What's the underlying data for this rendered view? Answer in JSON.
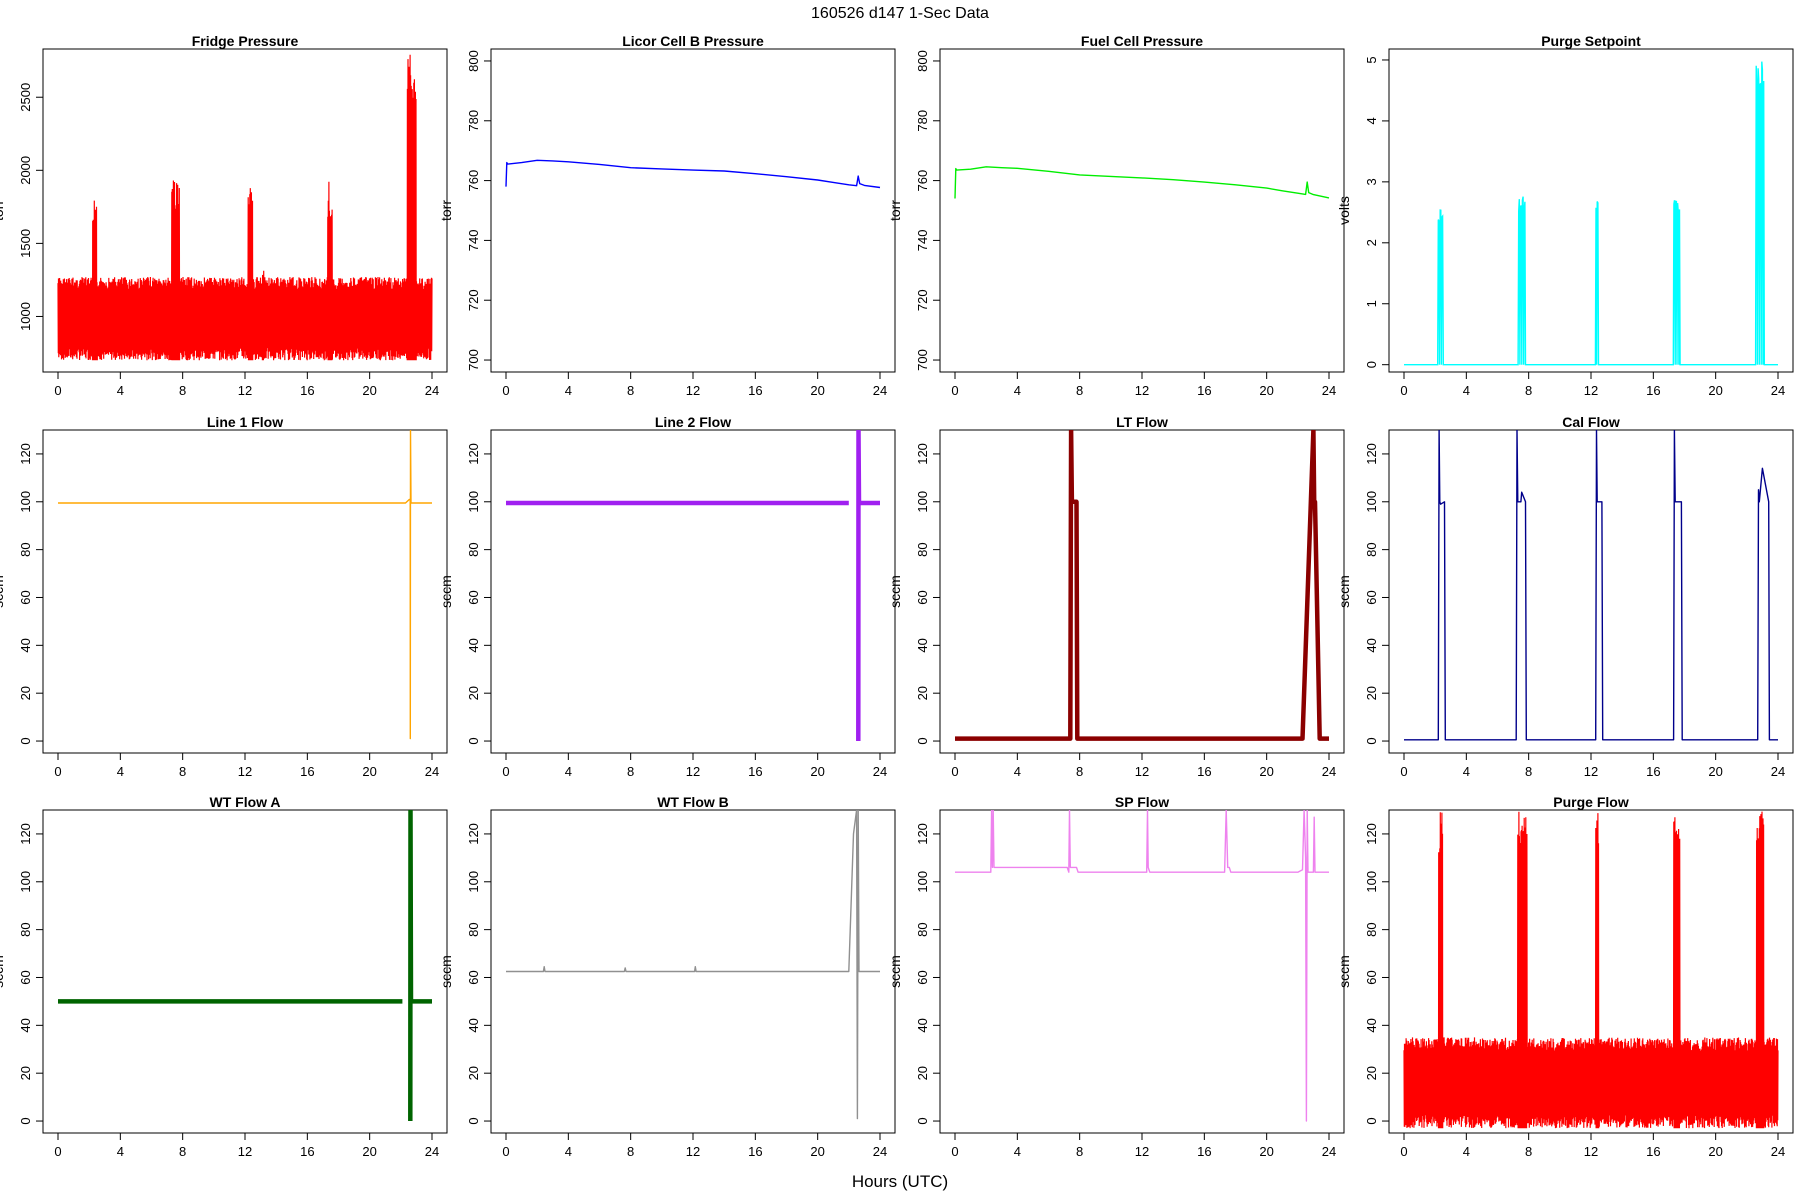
{
  "figure": {
    "title": "160526   d147   1-Sec Data",
    "xlabel": "Hours (UTC)"
  },
  "chart_data": [
    {
      "type": "line",
      "title": "Fridge Pressure",
      "ylabel": "torr",
      "color": "#ff0000",
      "xlim": [
        0,
        24
      ],
      "ylim": [
        620,
        2830
      ],
      "xticks": [
        0,
        4,
        8,
        12,
        16,
        20,
        24
      ],
      "yticks": [
        1000,
        1500,
        2000,
        2500
      ],
      "style": "noisy",
      "baseline": [
        700,
        1270
      ],
      "spikes": [
        {
          "x0": 2.2,
          "x1": 2.5,
          "y": 1900
        },
        {
          "x0": 7.3,
          "x1": 7.8,
          "y": 1940
        },
        {
          "x0": 12.2,
          "x1": 12.5,
          "y": 1900
        },
        {
          "x0": 13.1,
          "x1": 13.2,
          "y": 1450
        },
        {
          "x0": 17.3,
          "x1": 17.6,
          "y": 1930
        },
        {
          "x0": 22.4,
          "x1": 23.0,
          "y": 2800
        }
      ]
    },
    {
      "type": "line",
      "title": "Licor Cell B Pressure",
      "ylabel": "torr",
      "color": "#0000ff",
      "xlim": [
        0,
        24
      ],
      "ylim": [
        696,
        804
      ],
      "xticks": [
        0,
        4,
        8,
        12,
        16,
        20,
        24
      ],
      "yticks": [
        700,
        720,
        740,
        760,
        780,
        800
      ],
      "x": [
        0,
        0.05,
        0.1,
        1,
        2,
        3,
        4,
        6,
        8,
        10,
        12,
        14,
        16,
        18,
        20,
        21,
        22,
        22.5,
        22.6,
        22.7,
        23,
        24
      ],
      "y": [
        758,
        766,
        765.5,
        766,
        766.8,
        766.6,
        766.3,
        765.4,
        764.3,
        763.9,
        763.5,
        763.2,
        762.3,
        761.3,
        760.2,
        759.4,
        758.6,
        758.3,
        761.5,
        759,
        758.4,
        757.7
      ]
    },
    {
      "type": "line",
      "title": "Fuel Cell Pressure",
      "ylabel": "torr",
      "color": "#00ee00",
      "xlim": [
        0,
        24
      ],
      "ylim": [
        696,
        804
      ],
      "xticks": [
        0,
        4,
        8,
        12,
        16,
        20,
        24
      ],
      "yticks": [
        700,
        720,
        740,
        760,
        780,
        800
      ],
      "x": [
        0,
        0.05,
        0.1,
        1,
        2,
        3,
        4,
        6,
        8,
        10,
        12,
        14,
        16,
        18,
        20,
        21,
        22,
        22.5,
        22.6,
        22.7,
        23,
        24
      ],
      "y": [
        754,
        764,
        763.5,
        763.8,
        764.6,
        764.3,
        764.1,
        763.1,
        761.9,
        761.4,
        760.9,
        760.3,
        759.5,
        758.6,
        757.5,
        756.6,
        755.8,
        755.4,
        759.5,
        756,
        755.3,
        754.2
      ]
    },
    {
      "type": "line",
      "title": "Purge Setpoint",
      "ylabel": "volts",
      "color": "#00ffff",
      "xlim": [
        0,
        24
      ],
      "ylim": [
        -0.12,
        5.18
      ],
      "xticks": [
        0,
        4,
        8,
        12,
        16,
        20,
        24
      ],
      "yticks": [
        0,
        1,
        2,
        3,
        4,
        5
      ],
      "style": "pulses",
      "baseline": [
        0,
        0
      ],
      "spikes": [
        {
          "x0": 2.2,
          "x1": 2.5,
          "y": 2.6
        },
        {
          "x0": 7.3,
          "x1": 7.8,
          "y": 2.8
        },
        {
          "x0": 12.3,
          "x1": 12.5,
          "y": 2.7
        },
        {
          "x0": 17.3,
          "x1": 17.7,
          "y": 2.7
        },
        {
          "x0": 22.6,
          "x1": 23.1,
          "y": 5.0
        }
      ]
    },
    {
      "type": "line",
      "title": "Line 1 Flow",
      "ylabel": "sccm",
      "color": "#ffa500",
      "xlim": [
        0,
        24
      ],
      "ylim": [
        -5,
        130
      ],
      "xticks": [
        0,
        4,
        8,
        12,
        16,
        20,
        24
      ],
      "yticks": [
        0,
        20,
        40,
        60,
        80,
        100,
        120
      ],
      "x": [
        0,
        22.3,
        22.55,
        22.6,
        22.61,
        22.62,
        22.65,
        24
      ],
      "y": [
        99.5,
        99.5,
        101,
        101,
        1,
        130,
        99.5,
        99.5
      ]
    },
    {
      "type": "line",
      "title": "Line 2 Flow",
      "ylabel": "sccm",
      "color": "#a020f0",
      "xlim": [
        0,
        24
      ],
      "ylim": [
        -5,
        130
      ],
      "xticks": [
        0,
        4,
        8,
        12,
        16,
        20,
        24
      ],
      "yticks": [
        0,
        20,
        40,
        60,
        80,
        100,
        120
      ],
      "thick": true,
      "x": [
        0,
        22.0,
        22.01,
        22.6,
        22.61,
        22.62,
        22.65,
        24
      ],
      "y": [
        99.5,
        99.5,
        null,
        null,
        0,
        130,
        99.5,
        99.5
      ]
    },
    {
      "type": "line",
      "title": "LT Flow",
      "ylabel": "sccm",
      "color": "#8b0000",
      "xlim": [
        0,
        24
      ],
      "ylim": [
        -5,
        130
      ],
      "xticks": [
        0,
        4,
        8,
        12,
        16,
        20,
        24
      ],
      "yticks": [
        0,
        20,
        40,
        60,
        80,
        100,
        120
      ],
      "thick": true,
      "x": [
        0,
        7.4,
        7.45,
        7.5,
        7.8,
        7.85,
        22.0,
        22.3,
        23.0,
        23.05,
        23.1,
        23.4,
        23.45,
        24
      ],
      "y": [
        1,
        1,
        130,
        100,
        100,
        1,
        1,
        1,
        130,
        100,
        100,
        1,
        1,
        1
      ]
    },
    {
      "type": "line",
      "title": "Cal Flow",
      "ylabel": "sccm",
      "color": "#00008b",
      "xlim": [
        0,
        24
      ],
      "ylim": [
        -5,
        130
      ],
      "xticks": [
        0,
        4,
        8,
        12,
        16,
        20,
        24
      ],
      "yticks": [
        0,
        20,
        40,
        60,
        80,
        100,
        120
      ],
      "x": [
        0,
        2.2,
        2.25,
        2.3,
        2.35,
        2.6,
        2.65,
        7.2,
        7.25,
        7.3,
        7.5,
        7.55,
        7.8,
        7.85,
        12.3,
        12.35,
        12.4,
        12.7,
        12.75,
        17.3,
        17.35,
        17.4,
        17.8,
        17.85,
        22.7,
        22.75,
        22.8,
        23.0,
        23.4,
        23.45,
        24
      ],
      "y": [
        0.5,
        0.5,
        130,
        100,
        99,
        100,
        0.5,
        0.5,
        130,
        100,
        100,
        104,
        100,
        0.5,
        0.5,
        130,
        100,
        100,
        0.5,
        0.5,
        130,
        100,
        100,
        0.5,
        0.5,
        105,
        100,
        114,
        100,
        0.5,
        0.5
      ]
    },
    {
      "type": "line",
      "title": "WT Flow A",
      "ylabel": "sccm",
      "color": "#006400",
      "xlim": [
        0,
        24
      ],
      "ylim": [
        -5,
        130
      ],
      "xticks": [
        0,
        4,
        8,
        12,
        16,
        20,
        24
      ],
      "yticks": [
        0,
        20,
        40,
        60,
        80,
        100,
        120
      ],
      "thick": true,
      "x": [
        0,
        22.1,
        22.15,
        22.6,
        22.61,
        22.62,
        22.65,
        24
      ],
      "y": [
        50,
        50,
        null,
        null,
        0,
        130,
        50,
        50
      ]
    },
    {
      "type": "line",
      "title": "WT Flow B",
      "ylabel": "sccm",
      "color": "#909090",
      "xlim": [
        0,
        24
      ],
      "ylim": [
        -5,
        130
      ],
      "xticks": [
        0,
        4,
        8,
        12,
        16,
        20,
        24
      ],
      "yticks": [
        0,
        20,
        40,
        60,
        80,
        100,
        120
      ],
      "x": [
        0,
        2.4,
        2.45,
        2.5,
        7.6,
        7.65,
        7.7,
        12.1,
        12.15,
        12.2,
        22.0,
        22.3,
        22.5,
        22.55,
        22.6,
        22.65,
        24
      ],
      "y": [
        62.5,
        62.5,
        64.5,
        62.5,
        62.5,
        64,
        62.5,
        62.5,
        64.5,
        62.5,
        62.5,
        120,
        130,
        1,
        130,
        62.5,
        62.5
      ]
    },
    {
      "type": "line",
      "title": "SP Flow",
      "ylabel": "sccm",
      "color": "#ee82ee",
      "xlim": [
        0,
        24
      ],
      "ylim": [
        -5,
        130
      ],
      "xticks": [
        0,
        4,
        8,
        12,
        16,
        20,
        24
      ],
      "yticks": [
        0,
        20,
        40,
        60,
        80,
        100,
        120
      ],
      "x": [
        0,
        2.2,
        2.3,
        2.35,
        2.4,
        2.45,
        2.5,
        7.2,
        7.3,
        7.35,
        7.4,
        7.8,
        7.9,
        12.3,
        12.35,
        12.4,
        12.5,
        17.3,
        17.4,
        17.5,
        17.6,
        17.7,
        18.0,
        22.0,
        22.3,
        22.4,
        22.5,
        22.55,
        22.6,
        22.65,
        23.0,
        23.05,
        23.1,
        24
      ],
      "y": [
        104,
        104,
        104,
        130,
        106,
        130,
        106,
        106,
        104,
        130,
        106,
        106,
        104,
        104,
        130,
        106,
        104,
        104,
        130,
        106,
        106,
        104,
        104,
        104,
        105,
        130,
        110,
        0,
        130,
        104,
        104,
        127,
        104,
        104
      ]
    },
    {
      "type": "line",
      "title": "Purge Flow",
      "ylabel": "sccm",
      "color": "#ff0000",
      "xlim": [
        0,
        24
      ],
      "ylim": [
        -5,
        130
      ],
      "xticks": [
        0,
        4,
        8,
        12,
        16,
        20,
        24
      ],
      "yticks": [
        0,
        20,
        40,
        60,
        80,
        100,
        120
      ],
      "style": "noisy",
      "baseline": [
        -3,
        35
      ],
      "spikes": [
        {
          "x0": 2.2,
          "x1": 2.5,
          "y": 130
        },
        {
          "x0": 7.3,
          "x1": 7.9,
          "y": 130
        },
        {
          "x0": 12.3,
          "x1": 12.5,
          "y": 130
        },
        {
          "x0": 17.3,
          "x1": 17.7,
          "y": 130
        },
        {
          "x0": 22.6,
          "x1": 23.1,
          "y": 130
        }
      ]
    }
  ]
}
